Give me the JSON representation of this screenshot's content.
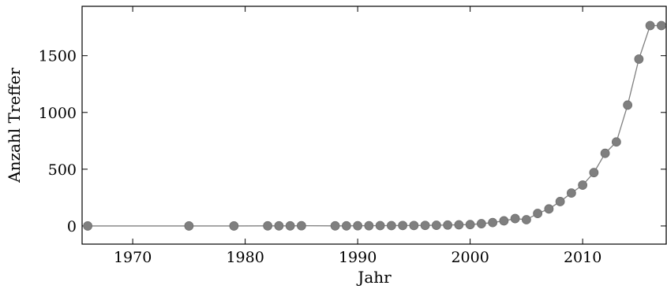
{
  "chart_data": {
    "type": "line",
    "title": "",
    "xlabel": "Jahr",
    "ylabel": "Anzahl Treffer",
    "xlim": [
      1965.5,
      2017.5
    ],
    "ylim": [
      -160,
      1935
    ],
    "grid": false,
    "x_ticks": [
      1970,
      1980,
      1990,
      2000,
      2010
    ],
    "y_ticks": [
      0,
      500,
      1000,
      1500
    ],
    "series": [
      {
        "color": "#7f7f7f",
        "marker": "circle",
        "x": [
          1966,
          1975,
          1979,
          1982,
          1983,
          1984,
          1985,
          1988,
          1989,
          1990,
          1991,
          1992,
          1993,
          1994,
          1995,
          1996,
          1997,
          1998,
          1999,
          2000,
          2001,
          2002,
          2003,
          2004,
          2005,
          2006,
          2007,
          2008,
          2009,
          2010,
          2011,
          2012,
          2013,
          2014,
          2015,
          2016,
          2017
        ],
        "y": [
          0,
          0,
          0,
          1,
          1,
          1,
          2,
          1,
          1,
          2,
          2,
          3,
          3,
          4,
          4,
          5,
          6,
          8,
          10,
          12,
          20,
          30,
          45,
          65,
          55,
          110,
          150,
          215,
          290,
          360,
          470,
          640,
          740,
          1065,
          1470,
          1765,
          1765
        ]
      }
    ]
  }
}
